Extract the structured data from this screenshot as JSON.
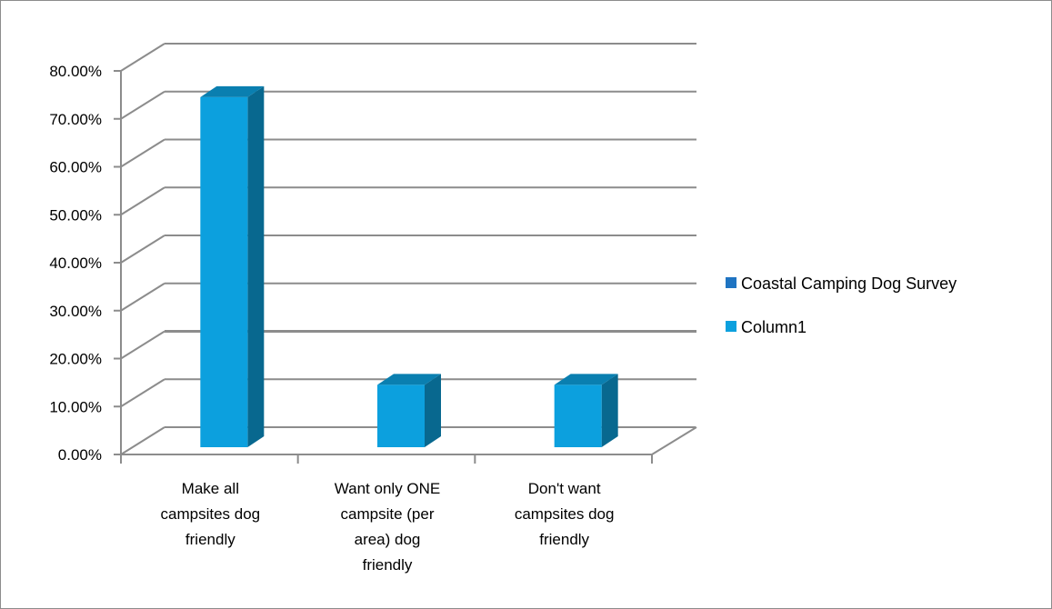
{
  "chart_data": {
    "type": "bar",
    "title": "",
    "xlabel": "",
    "ylabel": "",
    "ylim": [
      0,
      0.8
    ],
    "y_tick_labels": [
      "0.00%",
      "10.00%",
      "20.00%",
      "30.00%",
      "40.00%",
      "50.00%",
      "60.00%",
      "70.00%",
      "80.00%"
    ],
    "categories": [
      [
        "Make all",
        "campsites dog",
        "friendly"
      ],
      [
        "Want only ONE",
        "campsite (per",
        "area) dog",
        "friendly"
      ],
      [
        "Don't want",
        "campsites dog",
        "friendly"
      ]
    ],
    "series": [
      {
        "name": "Coastal Camping Dog Survey",
        "values": [
          null,
          null,
          null
        ]
      },
      {
        "name": "Column1",
        "values": [
          0.73,
          0.13,
          0.13
        ]
      }
    ],
    "legend_position": "right",
    "grid": true,
    "style": "3d-column",
    "colors": {
      "series1": "#1F74C2",
      "series2_front": "#0CA0DE",
      "series2_side": "#08688F",
      "series2_top": "#0A7FB0",
      "gridline": "#8c8c8c"
    }
  }
}
